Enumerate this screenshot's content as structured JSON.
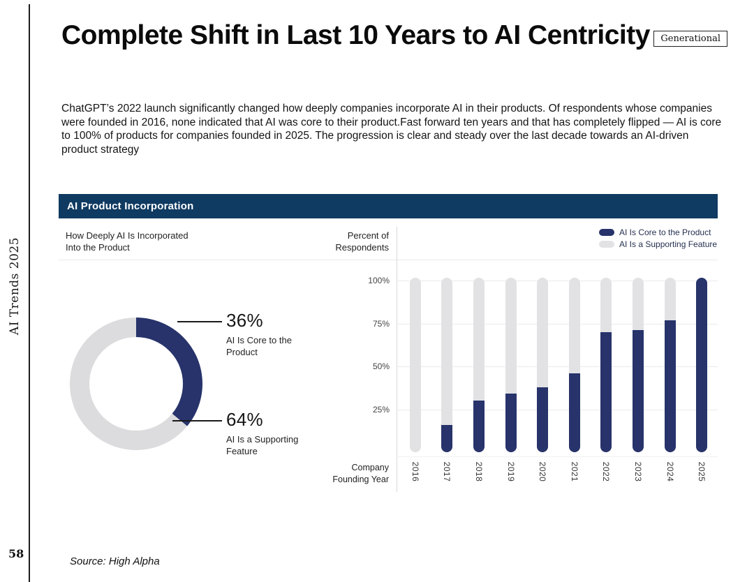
{
  "page": {
    "number": "58",
    "vertical_label": "AI Trends 2025",
    "source": "Source: High Alpha"
  },
  "header": {
    "title": "Complete Shift in Last 10 Years to AI Centricity",
    "badge": "Generational",
    "paragraph": "ChatGPT’s 2022 launch significantly changed how deeply companies incorporate AI in their products. Of respondents whose companies were founded in 2016, none indicated that AI was core to their product.Fast forward ten years and that has completely flipped — AI is core to 100% of products for companies founded in 2025. The progression is clear and steady over the last decade towards an AI-driven product strategy"
  },
  "panel": {
    "title": "AI Product Incorporation",
    "left_label": "How Deeply AI Is Incorporated\nInto the Product",
    "right_label": "Percent of\nRespondents",
    "x_label": "Company\nFounding Year"
  },
  "donut": {
    "core_pct": "36%",
    "core_caption": "AI Is Core to the\nProduct",
    "support_pct": "64%",
    "support_caption": "AI Is a Supporting\nFeature"
  },
  "chart_data": [
    {
      "type": "pie",
      "subtype": "donut",
      "title": "How Deeply AI Is Incorporated Into the Product",
      "slices": [
        {
          "label": "AI Is Core to the Product",
          "value": 36,
          "color": "#27336a"
        },
        {
          "label": "AI Is a Supporting Feature",
          "value": 64,
          "color": "#dcdcde"
        }
      ]
    },
    {
      "type": "bar",
      "stacked": true,
      "categories": [
        "2016",
        "2017",
        "2018",
        "2019",
        "2020",
        "2021",
        "2022",
        "2023",
        "2024",
        "2025"
      ],
      "series": [
        {
          "name": "AI Is Core to the Product",
          "color": "#27336a",
          "values": [
            0,
            16,
            30,
            34,
            38,
            46,
            70,
            71,
            77,
            100
          ]
        },
        {
          "name": "AI Is a Supporting Feature",
          "color": "#e2e2e4",
          "values": [
            100,
            84,
            70,
            66,
            62,
            54,
            30,
            29,
            23,
            0
          ]
        }
      ],
      "xlabel": "Company Founding Year",
      "ylabel": "Percent of Respondents",
      "yticks": [
        100,
        75,
        50,
        25
      ],
      "ytick_format": "percent",
      "ylim": [
        0,
        100
      ],
      "grid": true,
      "legend_position": "top-right"
    }
  ],
  "colors": {
    "navy": "#27336a",
    "bar_gray": "#e2e2e4",
    "donut_gray": "#dcdcde",
    "header_bg": "#0f3a61",
    "grid": "#ebebed",
    "axis": "#d8d8da"
  }
}
